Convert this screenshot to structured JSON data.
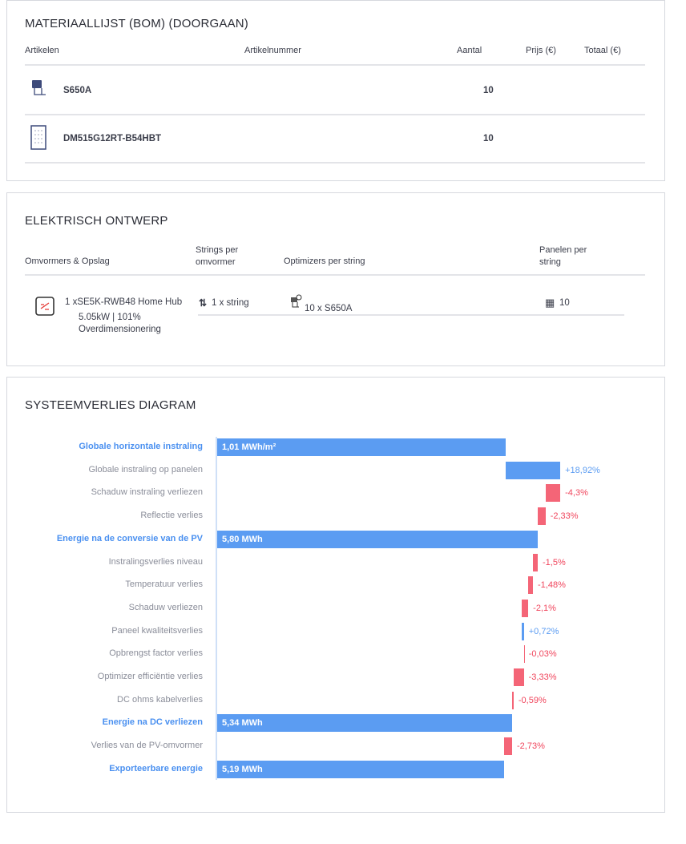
{
  "bom": {
    "title": "MATERIAALLIJST (BOM) (DOORGAAN)",
    "headers": {
      "articles": "Artikelen",
      "number": "Artikelnummer",
      "qty": "Aantal",
      "price": "Prijs (€)",
      "total": "Totaal (€)"
    },
    "rows": [
      {
        "icon": "optimizer-icon",
        "name": "S650A",
        "qty": "10"
      },
      {
        "icon": "solar-panel-icon",
        "name": "DM515G12RT-B54HBT",
        "qty": "10"
      }
    ]
  },
  "electrical": {
    "title": "ELEKTRISCH ONTWERP",
    "headers": {
      "inverters": "Omvormers & Opslag",
      "strings": "Strings per omvormer",
      "optimizers": "Optimizers per string",
      "panels": "Panelen per string"
    },
    "inverter": {
      "name": "1 xSE5K-RWB48 Home Hub",
      "power": "5.05kW | 101%",
      "oversize": "Overdimensionering"
    },
    "strings": "1 x string",
    "optimizers": "10 x S650A",
    "panels": "10"
  },
  "losses": {
    "title": "SYSTEEMVERLIES DIAGRAM",
    "colors": {
      "total": "#5b9cf2",
      "positive": "#5b9cf2",
      "negative": "#f46577",
      "negative_text": "#f0455c"
    },
    "rows": [
      {
        "label": "Globale horizontale instraling",
        "type": "total",
        "value": "1,01 MWh/m²"
      },
      {
        "label": "Globale instraling op panelen",
        "type": "delta",
        "pct": 18.92,
        "value": "+18,92%"
      },
      {
        "label": "Schaduw instraling verliezen",
        "type": "delta",
        "pct": -4.3,
        "value": "-4,3%"
      },
      {
        "label": "Reflectie verlies",
        "type": "delta",
        "pct": -2.33,
        "value": "-2,33%"
      },
      {
        "label": "Energie na de conversie van de PV",
        "type": "total",
        "value": "5,80 MWh"
      },
      {
        "label": "Instralingsverlies niveau",
        "type": "delta",
        "pct": -1.5,
        "value": "-1,5%"
      },
      {
        "label": "Temperatuur verlies",
        "type": "delta",
        "pct": -1.48,
        "value": "-1,48%"
      },
      {
        "label": "Schaduw verliezen",
        "type": "delta",
        "pct": -2.1,
        "value": "-2,1%"
      },
      {
        "label": "Paneel kwaliteitsverlies",
        "type": "delta",
        "pct": 0.72,
        "value": "+0,72%"
      },
      {
        "label": "Opbrengst factor verlies",
        "type": "delta",
        "pct": -0.03,
        "value": "-0,03%"
      },
      {
        "label": "Optimizer efficiëntie verlies",
        "type": "delta",
        "pct": -3.33,
        "value": "-3,33%"
      },
      {
        "label": "DC ohms kabelverlies",
        "type": "delta",
        "pct": -0.59,
        "value": "-0,59%"
      },
      {
        "label": "Energie na DC verliezen",
        "type": "total",
        "value": "5,34 MWh"
      },
      {
        "label": "Verlies van de PV-omvormer",
        "type": "delta",
        "pct": -2.73,
        "value": "-2,73%"
      },
      {
        "label": "Exporteerbare energie",
        "type": "total",
        "value": "5,19 MWh"
      }
    ]
  }
}
